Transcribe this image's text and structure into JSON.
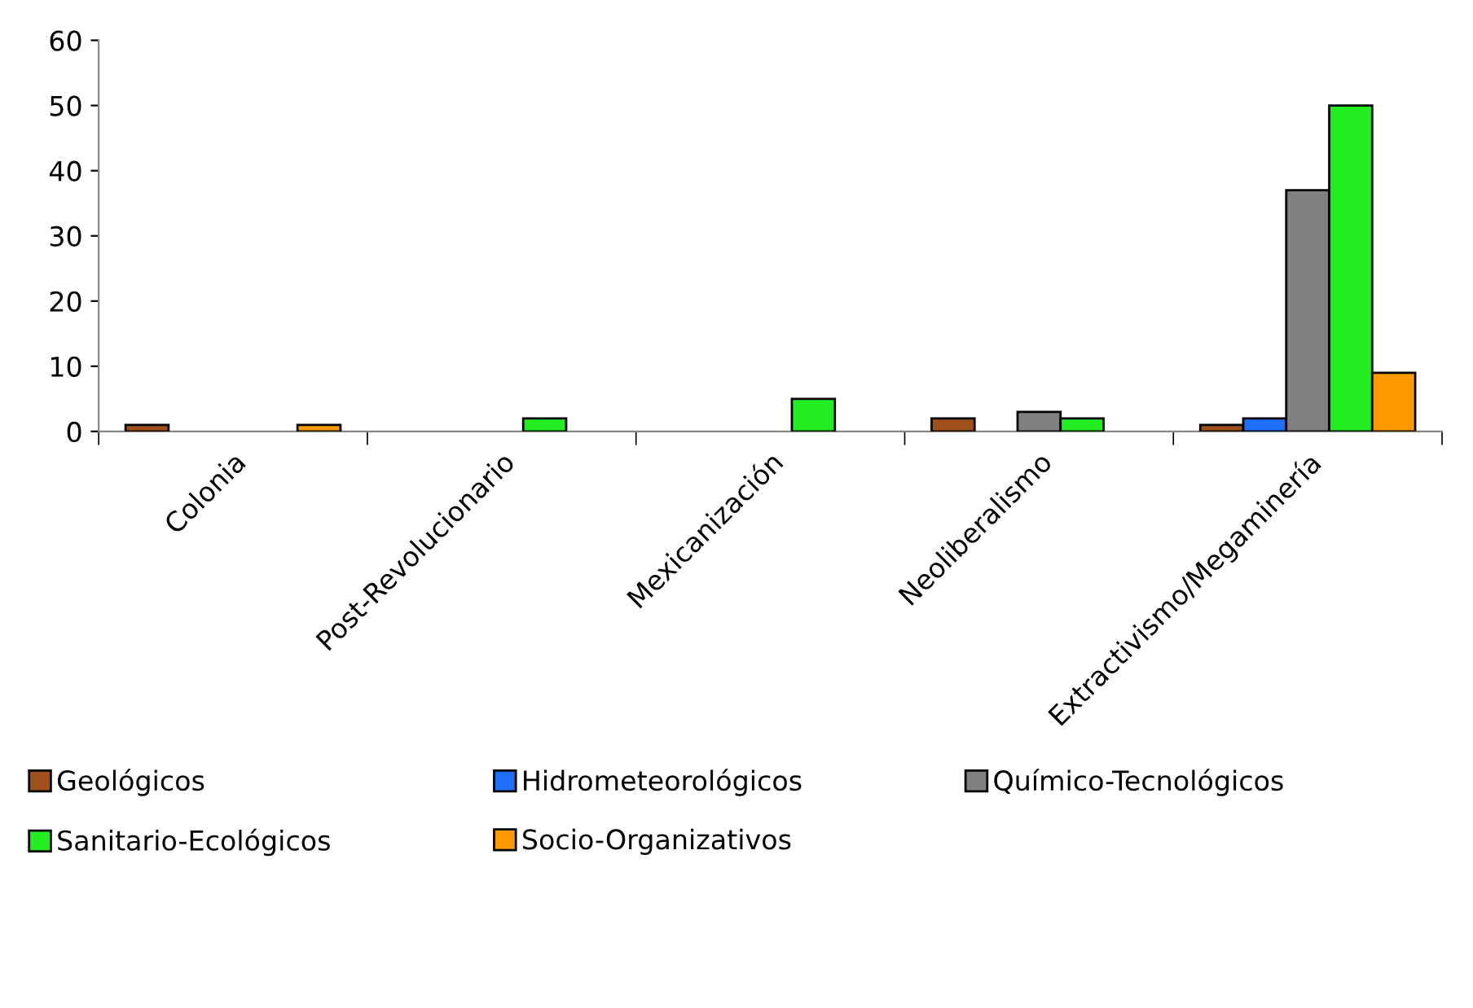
{
  "chart_data": {
    "type": "bar",
    "categories": [
      "Colonia",
      "Post-Revolucionario",
      "Mexicanización",
      "Neoliberalismo",
      "Extractivismo/Megaminería"
    ],
    "series": [
      {
        "name": "Geológicos",
        "color": "#a0501a",
        "values": [
          1,
          null,
          null,
          2,
          1
        ]
      },
      {
        "name": "Hidrometeorológicos",
        "color": "#1f6fff",
        "values": [
          null,
          null,
          null,
          null,
          2
        ]
      },
      {
        "name": "Químico-Tecnológicos",
        "color": "#808080",
        "values": [
          null,
          null,
          null,
          3,
          37
        ]
      },
      {
        "name": "Sanitario-Ecológicos",
        "color": "#22ee22",
        "values": [
          null,
          2,
          5,
          2,
          50
        ]
      },
      {
        "name": "Socio-Organizativos",
        "color": "#ff9900",
        "values": [
          1,
          null,
          null,
          null,
          9
        ]
      }
    ],
    "ylim": [
      0,
      60
    ],
    "yticks": [
      0,
      10,
      20,
      30,
      40,
      50,
      60
    ],
    "grid": false,
    "legend": "bottom"
  }
}
